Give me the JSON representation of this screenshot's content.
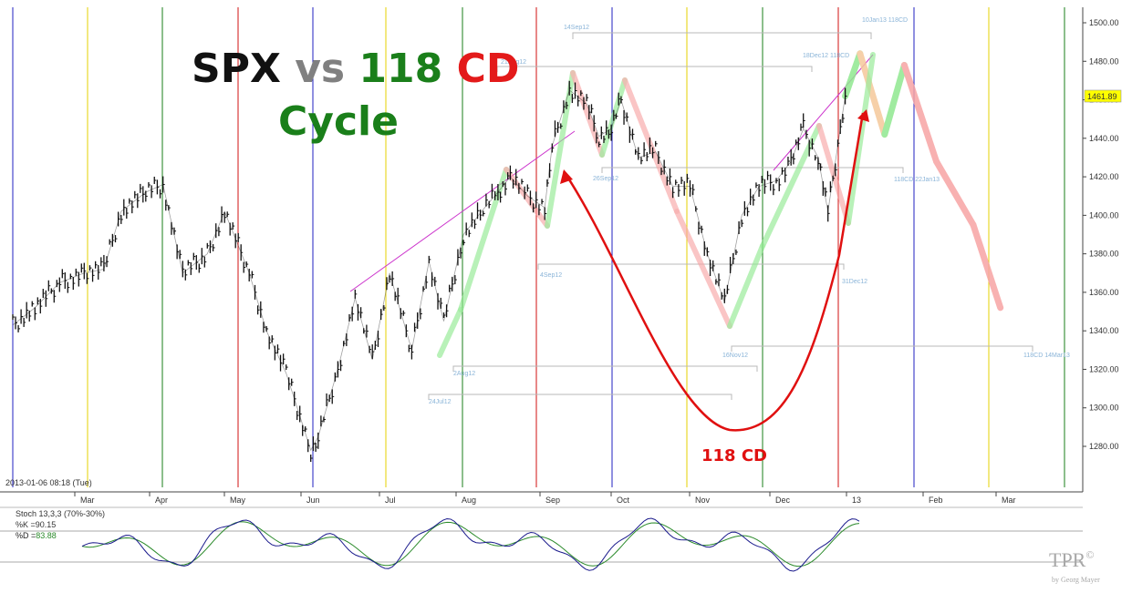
{
  "title": {
    "part1": "SPX",
    "part2": "vs",
    "part3": "118",
    "part4": "CD",
    "part5": "Cycle"
  },
  "colors": {
    "title_spx": "#111111",
    "title_vs": "#808080",
    "title_num": "#1a7f1a",
    "title_cd": "#e31a1a",
    "cycle": "#1a7f1a",
    "arc": "#e01010",
    "stoch_k": "#1a1a8c",
    "stoch_d": "#2a8a2a",
    "price_box": "#ffff00",
    "up_projection": "#8fe88f",
    "down_projection": "#f7a3a3",
    "turn_projection": "#f5c89a",
    "upper_trend": "#cc33cc"
  },
  "arc_label": "118 CD",
  "timestamp": "2013-01-06 08:18 (Tue)",
  "price_label": "1461.89",
  "watermark": {
    "brand": "TPR",
    "symbol": "©",
    "byline": "by Georg Mayer"
  },
  "stoch": {
    "title": "Stoch 13,3,3 (70%-30%)",
    "k_label": "%K =",
    "k_value": "90.15",
    "d_label": "%D =",
    "d_value": "83.88",
    "upper": 70,
    "lower": 30
  },
  "chart_data": {
    "type": "line",
    "title": "SPX vs 118 CD Cycle",
    "ylim": [
      1265,
      1505
    ],
    "yticks": [
      1280,
      1300,
      1320,
      1340,
      1360,
      1380,
      1400,
      1420,
      1440,
      1460,
      1480,
      1500
    ],
    "ytick_labels": [
      "1280.00",
      "1300.00",
      "1320.00",
      "1340.00",
      "1360.00",
      "1380.00",
      "1400.00",
      "1420.00",
      "1440.00",
      "1460.00",
      "1480.00",
      "1500.00"
    ],
    "xlabels": [
      "Mar",
      "Apr",
      "May",
      "Jun",
      "Jul",
      "Aug",
      "Sep",
      "Oct",
      "Nov",
      "Dec",
      "13",
      "Feb",
      "Mar"
    ],
    "grid": false,
    "series": [
      {
        "name": "SPX",
        "x": [
          "2012-02-01",
          "2012-02-10",
          "2012-02-20",
          "2012-03-01",
          "2012-03-09",
          "2012-03-16",
          "2012-03-26",
          "2012-04-02",
          "2012-04-10",
          "2012-04-20",
          "2012-04-27",
          "2012-05-07",
          "2012-05-14",
          "2012-05-22",
          "2012-06-01",
          "2012-06-04",
          "2012-06-12",
          "2012-06-19",
          "2012-06-26",
          "2012-07-03",
          "2012-07-12",
          "2012-07-19",
          "2012-07-25",
          "2012-08-02",
          "2012-08-10",
          "2012-08-16",
          "2012-08-21",
          "2012-08-28",
          "2012-09-04",
          "2012-09-07",
          "2012-09-14",
          "2012-09-21",
          "2012-09-26",
          "2012-10-01",
          "2012-10-05",
          "2012-10-12",
          "2012-10-19",
          "2012-10-26",
          "2012-11-02",
          "2012-11-09",
          "2012-11-16",
          "2012-11-23",
          "2012-11-30",
          "2012-12-07",
          "2012-12-13",
          "2012-12-18",
          "2012-12-24",
          "2012-12-28",
          "2013-01-02",
          "2013-01-04"
        ],
        "values": [
          1343,
          1352,
          1365,
          1370,
          1372,
          1402,
          1412,
          1416,
          1370,
          1380,
          1402,
          1370,
          1340,
          1318,
          1278,
          1285,
          1320,
          1357,
          1325,
          1370,
          1330,
          1376,
          1345,
          1390,
          1403,
          1412,
          1420,
          1410,
          1404,
          1436,
          1465,
          1458,
          1441,
          1445,
          1460,
          1430,
          1433,
          1415,
          1415,
          1380,
          1355,
          1400,
          1415,
          1418,
          1428,
          1445,
          1430,
          1402,
          1445,
          1461.89
        ]
      },
      {
        "name": "Projection",
        "x": [
          "2013-01-04",
          "2013-01-10",
          "2013-01-20",
          "2013-01-28",
          "2013-02-10",
          "2013-02-25",
          "2013-03-08"
        ],
        "values": [
          1461.89,
          1484,
          1442,
          1478,
          1428,
          1395,
          1352
        ]
      }
    ],
    "trendlines": [
      {
        "from": [
          "2012-06-15",
          1363
        ],
        "to": [
          "2012-09-07",
          1442
        ]
      },
      {
        "from": [
          "2012-11-26",
          1420
        ],
        "to": [
          "2013-01-10",
          1484
        ]
      }
    ],
    "cycle_lows": [
      {
        "label": "24Jul12",
        "date": "2012-07-24"
      },
      {
        "label": "2Aug12",
        "date": "2012-08-02"
      },
      {
        "label": "4Sep12",
        "date": "2012-09-04"
      },
      {
        "label": "26Sep12",
        "date": "2012-09-26"
      },
      {
        "label": "16Nov12",
        "date": "2012-11-16"
      },
      {
        "label": "31Dec12",
        "date": "2012-12-31"
      }
    ],
    "cycle_annotations": [
      {
        "date": "21Aug12",
        "text": "21Aug12"
      },
      {
        "date": "14Sep12",
        "text": "14Sep12"
      },
      {
        "date": "18Dec12",
        "text": "18Dec12 118CD"
      },
      {
        "date": "10Jan13",
        "text": "10Jan13 118CD"
      },
      {
        "date": "22Jan13",
        "text": "118CD 22Jan13"
      },
      {
        "date": "14Mar13",
        "text": "118CD 14Mar13"
      }
    ]
  }
}
